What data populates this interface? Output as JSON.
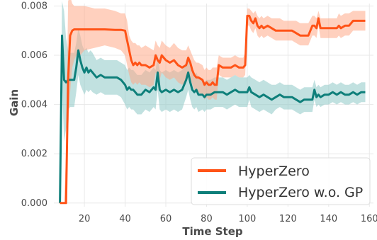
{
  "chart_data": {
    "type": "line",
    "title": "",
    "xlabel": "Time Step",
    "ylabel": "Gain",
    "xlim": [
      5,
      162
    ],
    "ylim": [
      -0.00015,
      0.0081
    ],
    "x_ticks": [
      "20",
      "40",
      "60",
      "80",
      "100",
      "120",
      "140",
      "160"
    ],
    "y_ticks": [
      "0.000",
      "0.002",
      "0.004",
      "0.006",
      "0.008"
    ],
    "grid": true,
    "legend_position": "lower-right",
    "series": [
      {
        "name": "HyperZero",
        "color": "#ff5317",
        "band_color": "#ffa988",
        "x": [
          8,
          9,
          10,
          11,
          12,
          13,
          14,
          15,
          16,
          18,
          20,
          25,
          30,
          35,
          38,
          40,
          41,
          42,
          43,
          44,
          45,
          46,
          47,
          48,
          50,
          52,
          54,
          55,
          56,
          57,
          58,
          60,
          62,
          64,
          66,
          68,
          70,
          71,
          72,
          73,
          74,
          75,
          76,
          78,
          79,
          80,
          81,
          82,
          83,
          84,
          85,
          86,
          88,
          90,
          92,
          94,
          96,
          98,
          99,
          100,
          101,
          102,
          103,
          104,
          105,
          106,
          107,
          108,
          110,
          112,
          114,
          116,
          118,
          120,
          122,
          124,
          126,
          128,
          130,
          132,
          133,
          134,
          135,
          136,
          138,
          140,
          142,
          144,
          145,
          146,
          148,
          150,
          152,
          154,
          156,
          158
        ],
        "y": [
          0,
          0,
          0,
          0,
          0.005,
          0.0068,
          0.007,
          0.00705,
          0.00705,
          0.00705,
          0.00705,
          0.00705,
          0.00705,
          0.00703,
          0.00703,
          0.007,
          0.0066,
          0.0062,
          0.0058,
          0.0056,
          0.0057,
          0.0056,
          0.0057,
          0.0056,
          0.0056,
          0.0055,
          0.0056,
          0.006,
          0.0058,
          0.0057,
          0.006,
          0.0058,
          0.0057,
          0.0058,
          0.0056,
          0.0055,
          0.0056,
          0.0059,
          0.0057,
          0.0054,
          0.0052,
          0.0051,
          0.0051,
          0.005,
          0.0048,
          0.0049,
          0.0048,
          0.0048,
          0.0049,
          0.0048,
          0.0048,
          0.0056,
          0.0055,
          0.0055,
          0.0055,
          0.0056,
          0.0055,
          0.0055,
          0.0056,
          0.0076,
          0.0076,
          0.0074,
          0.0073,
          0.0075,
          0.0072,
          0.0071,
          0.0072,
          0.0071,
          0.0072,
          0.0071,
          0.007,
          0.007,
          0.007,
          0.007,
          0.007,
          0.0069,
          0.0068,
          0.0068,
          0.0068,
          0.0072,
          0.0072,
          0.0071,
          0.0075,
          0.0071,
          0.0071,
          0.0071,
          0.0071,
          0.0071,
          0.0072,
          0.0071,
          0.0072,
          0.0072,
          0.0074,
          0.0074,
          0.0074,
          0.0074
        ],
        "upper": [
          0,
          0,
          0,
          0.002,
          0.0082,
          0.0084,
          0.0081,
          0.008,
          0.008,
          0.008,
          0.008,
          0.0079,
          0.0079,
          0.0078,
          0.0077,
          0.0077,
          0.0074,
          0.0068,
          0.0066,
          0.0065,
          0.0065,
          0.0064,
          0.0064,
          0.0063,
          0.0064,
          0.0063,
          0.0062,
          0.0066,
          0.0064,
          0.0063,
          0.0066,
          0.0064,
          0.0063,
          0.0065,
          0.0063,
          0.0062,
          0.0062,
          0.0064,
          0.0062,
          0.006,
          0.0058,
          0.0057,
          0.0057,
          0.0056,
          0.0054,
          0.0055,
          0.0054,
          0.0054,
          0.0055,
          0.0055,
          0.0055,
          0.006,
          0.0059,
          0.0059,
          0.0059,
          0.006,
          0.0059,
          0.0059,
          0.0061,
          0.0079,
          0.0079,
          0.0078,
          0.0077,
          0.0078,
          0.0076,
          0.0075,
          0.0076,
          0.0075,
          0.0076,
          0.0075,
          0.0075,
          0.0075,
          0.0074,
          0.0074,
          0.0074,
          0.0074,
          0.0073,
          0.0073,
          0.0073,
          0.0076,
          0.0076,
          0.0075,
          0.0078,
          0.0075,
          0.0075,
          0.0075,
          0.0075,
          0.0075,
          0.0077,
          0.0076,
          0.0077,
          0.0077,
          0.0078,
          0.0078,
          0.0078,
          0.0078
        ],
        "lower": [
          0,
          0,
          0,
          0,
          0.003,
          0.0045,
          0.0055,
          0.0058,
          0.006,
          0.006,
          0.0062,
          0.0063,
          0.0064,
          0.0063,
          0.0062,
          0.006,
          0.0056,
          0.0052,
          0.0049,
          0.0048,
          0.0049,
          0.0048,
          0.0049,
          0.0048,
          0.0048,
          0.0047,
          0.0048,
          0.0053,
          0.0051,
          0.005,
          0.0053,
          0.0051,
          0.005,
          0.0051,
          0.0049,
          0.0048,
          0.0049,
          0.0053,
          0.0051,
          0.0048,
          0.0046,
          0.0045,
          0.0045,
          0.0044,
          0.0042,
          0.0043,
          0.0042,
          0.0042,
          0.0043,
          0.0042,
          0.0042,
          0.0052,
          0.0051,
          0.0051,
          0.0051,
          0.0052,
          0.0051,
          0.0051,
          0.0052,
          0.0072,
          0.0072,
          0.007,
          0.0069,
          0.0071,
          0.0068,
          0.0067,
          0.0068,
          0.0067,
          0.0068,
          0.0067,
          0.0066,
          0.0066,
          0.0066,
          0.0066,
          0.0066,
          0.0065,
          0.0064,
          0.0064,
          0.0064,
          0.0068,
          0.0068,
          0.0067,
          0.0072,
          0.0067,
          0.0067,
          0.0067,
          0.0067,
          0.0067,
          0.0068,
          0.0067,
          0.0068,
          0.0068,
          0.007,
          0.007,
          0.007,
          0.007
        ]
      },
      {
        "name": "HyperZero w.o. GP",
        "color": "#0e7f7a",
        "band_color": "#8ec8c6",
        "x": [
          8,
          9,
          10,
          11,
          12,
          13,
          14,
          15,
          16,
          17,
          18,
          19,
          20,
          21,
          22,
          23,
          24,
          26,
          28,
          30,
          32,
          34,
          36,
          38,
          40,
          41,
          42,
          43,
          44,
          45,
          46,
          47,
          48,
          50,
          52,
          54,
          55,
          56,
          57,
          58,
          60,
          62,
          64,
          66,
          68,
          70,
          71,
          72,
          73,
          74,
          75,
          76,
          78,
          79,
          80,
          81,
          82,
          84,
          86,
          88,
          90,
          92,
          94,
          96,
          98,
          100,
          101,
          102,
          104,
          106,
          108,
          110,
          112,
          114,
          116,
          118,
          120,
          122,
          124,
          126,
          128,
          130,
          132,
          133,
          134,
          135,
          136,
          138,
          140,
          142,
          144,
          146,
          148,
          150,
          152,
          154,
          156,
          158
        ],
        "y": [
          0,
          0.0068,
          0.005,
          0.0049,
          0.005,
          0.005,
          0.005,
          0.005,
          0.0055,
          0.0062,
          0.0058,
          0.0055,
          0.0053,
          0.0055,
          0.0053,
          0.0054,
          0.0053,
          0.0051,
          0.0052,
          0.0051,
          0.0051,
          0.0051,
          0.0051,
          0.005,
          0.0048,
          0.0046,
          0.0047,
          0.0046,
          0.0046,
          0.0045,
          0.0044,
          0.0044,
          0.0044,
          0.0046,
          0.0045,
          0.0047,
          0.0046,
          0.0053,
          0.0046,
          0.0045,
          0.0046,
          0.0045,
          0.0046,
          0.0045,
          0.0046,
          0.005,
          0.0053,
          0.0049,
          0.0046,
          0.0045,
          0.0046,
          0.0044,
          0.0044,
          0.0043,
          0.0044,
          0.0044,
          0.0044,
          0.0045,
          0.0045,
          0.0045,
          0.0044,
          0.0045,
          0.0046,
          0.0045,
          0.0045,
          0.0045,
          0.0047,
          0.0045,
          0.0044,
          0.0043,
          0.0044,
          0.0043,
          0.0042,
          0.0043,
          0.0044,
          0.0043,
          0.0043,
          0.0043,
          0.0042,
          0.0041,
          0.0042,
          0.0042,
          0.0042,
          0.0046,
          0.0043,
          0.0044,
          0.0043,
          0.0044,
          0.0044,
          0.0045,
          0.0044,
          0.0045,
          0.0044,
          0.0044,
          0.0045,
          0.0044,
          0.0045,
          0.0045
        ],
        "upper": [
          0,
          0.0082,
          0.0078,
          0.0067,
          0.0062,
          0.0061,
          0.0061,
          0.0061,
          0.0065,
          0.0071,
          0.0068,
          0.0064,
          0.0062,
          0.0063,
          0.0061,
          0.0062,
          0.0061,
          0.0058,
          0.0059,
          0.0058,
          0.0058,
          0.0058,
          0.0058,
          0.0057,
          0.0056,
          0.0054,
          0.0055,
          0.0054,
          0.0054,
          0.0053,
          0.0052,
          0.0052,
          0.0052,
          0.0054,
          0.0053,
          0.0055,
          0.0054,
          0.006,
          0.0054,
          0.0053,
          0.0054,
          0.0053,
          0.0054,
          0.0053,
          0.0054,
          0.0057,
          0.006,
          0.0056,
          0.0053,
          0.0052,
          0.0053,
          0.0051,
          0.005,
          0.0049,
          0.005,
          0.005,
          0.005,
          0.0051,
          0.0051,
          0.0051,
          0.005,
          0.0051,
          0.0052,
          0.0051,
          0.0051,
          0.0051,
          0.0052,
          0.0051,
          0.005,
          0.0049,
          0.005,
          0.0049,
          0.0048,
          0.0048,
          0.0049,
          0.0048,
          0.0048,
          0.0048,
          0.0047,
          0.0046,
          0.0047,
          0.0047,
          0.0047,
          0.005,
          0.0047,
          0.0048,
          0.0047,
          0.0048,
          0.0048,
          0.0049,
          0.0048,
          0.0049,
          0.0048,
          0.0048,
          0.0049,
          0.0048,
          0.0049,
          0.0049
        ],
        "lower": [
          0,
          0.005,
          0.0025,
          0.003,
          0.0038,
          0.0039,
          0.0039,
          0.0039,
          0.0045,
          0.0052,
          0.0048,
          0.0046,
          0.0044,
          0.0046,
          0.0045,
          0.0046,
          0.0045,
          0.0044,
          0.0045,
          0.0044,
          0.0044,
          0.0044,
          0.0044,
          0.0043,
          0.004,
          0.0038,
          0.0039,
          0.0038,
          0.0038,
          0.0037,
          0.0036,
          0.0036,
          0.0036,
          0.0038,
          0.0037,
          0.0039,
          0.0038,
          0.0046,
          0.0038,
          0.0037,
          0.0038,
          0.0037,
          0.0038,
          0.0037,
          0.0038,
          0.0043,
          0.0046,
          0.0042,
          0.0039,
          0.0038,
          0.0039,
          0.0037,
          0.0038,
          0.0037,
          0.0038,
          0.0038,
          0.0038,
          0.0039,
          0.0039,
          0.0039,
          0.0038,
          0.0039,
          0.004,
          0.0039,
          0.0039,
          0.0039,
          0.0042,
          0.0039,
          0.0038,
          0.0037,
          0.0038,
          0.0037,
          0.0036,
          0.0038,
          0.0039,
          0.0038,
          0.0038,
          0.0038,
          0.0037,
          0.0036,
          0.0037,
          0.0037,
          0.0037,
          0.0042,
          0.0039,
          0.004,
          0.0039,
          0.004,
          0.004,
          0.0041,
          0.004,
          0.0041,
          0.004,
          0.004,
          0.0041,
          0.004,
          0.0041,
          0.0041
        ]
      }
    ]
  }
}
